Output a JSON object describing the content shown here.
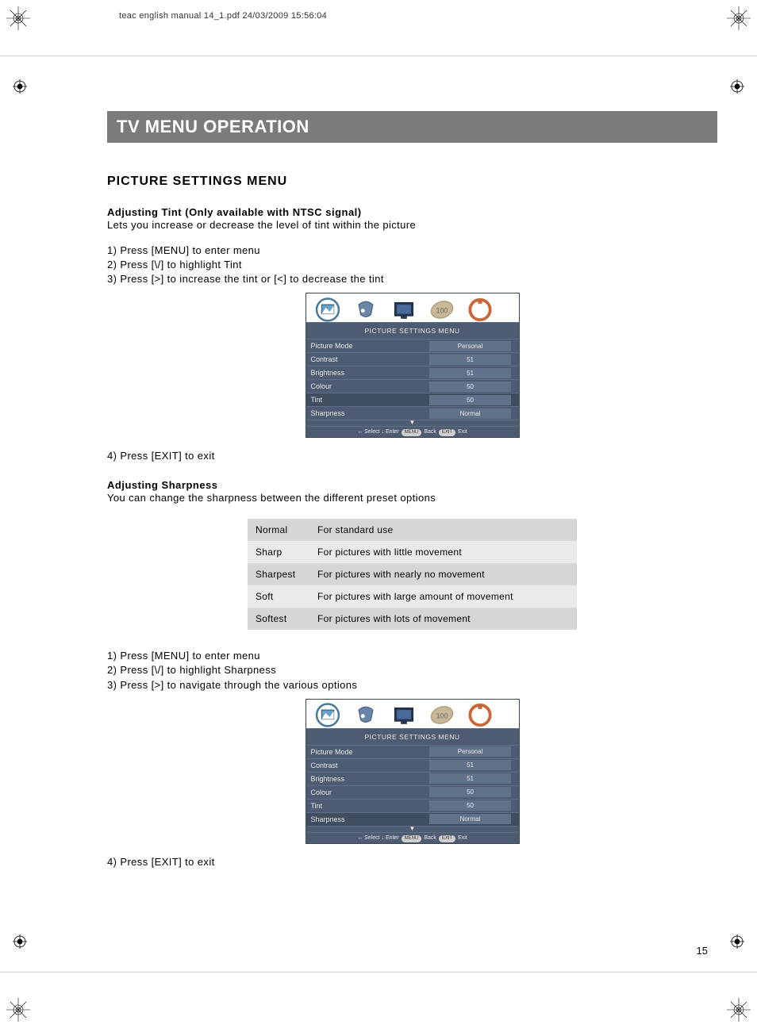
{
  "meta": {
    "header_text": "teac english manual 14_1.pdf   24/03/2009   15:56:04",
    "page_number": "15"
  },
  "title": "TV MENU OPERATION",
  "section_title": "PICTURE SETTINGS MENU",
  "tint": {
    "subhead": "Adjusting Tint (Only available with NTSC signal)",
    "desc": "Lets you increase or decrease the level of tint within the picture",
    "steps": [
      "1) Press [MENU] to enter menu",
      "2) Press [\\/] to highlight Tint",
      "3) Press [>] to increase the tint or [<] to decrease the tint"
    ],
    "exit": "4) Press [EXIT] to exit"
  },
  "sharpness": {
    "subhead": "Adjusting Sharpness",
    "desc": "You can change the sharpness between the different preset options",
    "steps": [
      "1) Press [MENU] to enter menu",
      "2) Press [\\/] to highlight Sharpness",
      "3) Press [>] to navigate through the various options"
    ],
    "exit": "4) Press [EXIT] to exit",
    "table": [
      {
        "mode": "Normal",
        "desc": "For standard use"
      },
      {
        "mode": "Sharp",
        "desc": "For pictures with little movement"
      },
      {
        "mode": "Sharpest",
        "desc": "For pictures with nearly no movement"
      },
      {
        "mode": "Soft",
        "desc": "For pictures with large amount of movement"
      },
      {
        "mode": "Softest",
        "desc": "For pictures with lots of movement"
      }
    ]
  },
  "osd1": {
    "title": "PICTURE SETTINGS MENU",
    "highlight_row": 4,
    "rows": [
      {
        "label": "Picture Mode",
        "value": "Personal"
      },
      {
        "label": "Contrast",
        "value": "51"
      },
      {
        "label": "Brightness",
        "value": "51"
      },
      {
        "label": "Colour",
        "value": "50"
      },
      {
        "label": "Tint",
        "value": "50"
      },
      {
        "label": "Sharpness",
        "value": "Normal"
      }
    ],
    "footer": {
      "select": "Select",
      "enter": "Enter",
      "menu": "MENU",
      "back": "Back",
      "exit_pill": "EXIT",
      "exit": "Exit"
    }
  },
  "osd2": {
    "title": "PICTURE SETTINGS MENU",
    "highlight_row": 5,
    "rows": [
      {
        "label": "Picture Mode",
        "value": "Personal"
      },
      {
        "label": "Contrast",
        "value": "51"
      },
      {
        "label": "Brightness",
        "value": "51"
      },
      {
        "label": "Colour",
        "value": "50"
      },
      {
        "label": "Tint",
        "value": "50"
      },
      {
        "label": "Sharpness",
        "value": "Normal"
      }
    ],
    "footer": {
      "select": "Select",
      "enter": "Enter",
      "menu": "MENU",
      "back": "Back",
      "exit_pill": "EXIT",
      "exit": "Exit"
    }
  },
  "colors": {
    "title_bar": "#7b7b7b",
    "osd_bg": "#4d5c72",
    "osd_row_hl": "#3f4d61",
    "table_odd": "#d6d6d6",
    "table_even": "#eaeaea"
  }
}
